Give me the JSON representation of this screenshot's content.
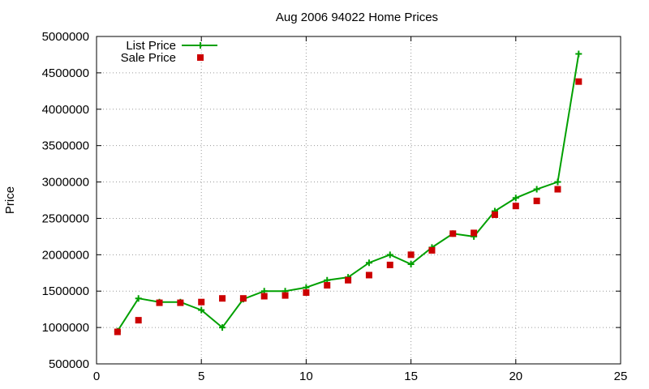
{
  "chart_data": {
    "type": "line",
    "title": "Aug 2006 94022 Home Prices",
    "xlabel": "",
    "ylabel": "Price",
    "xlim": [
      0,
      25
    ],
    "ylim": [
      500000,
      5000000
    ],
    "x_ticks": [
      0,
      5,
      10,
      15,
      20,
      25
    ],
    "y_ticks": [
      500000,
      1000000,
      1500000,
      2000000,
      2500000,
      3000000,
      3500000,
      4000000,
      4500000,
      5000000
    ],
    "x_tick_labels": [
      "0",
      "5",
      "10",
      "15",
      "20",
      "25"
    ],
    "y_tick_labels": [
      "500000",
      "1000000",
      "1500000",
      "2000000",
      "2500000",
      "3000000",
      "3500000",
      "4000000",
      "4500000",
      "5000000"
    ],
    "grid": true,
    "legend_position": "top-left",
    "series": [
      {
        "name": "List Price",
        "style": "line+cross",
        "color": "#00a000",
        "x": [
          1,
          2,
          3,
          4,
          5,
          6,
          7,
          8,
          9,
          10,
          11,
          12,
          13,
          14,
          15,
          16,
          17,
          18,
          19,
          20,
          21,
          22,
          23
        ],
        "y": [
          950000,
          1400000,
          1350000,
          1350000,
          1240000,
          1000000,
          1390000,
          1500000,
          1500000,
          1550000,
          1650000,
          1690000,
          1890000,
          2000000,
          1870000,
          2100000,
          2290000,
          2250000,
          2600000,
          2780000,
          2900000,
          3000000,
          4760000
        ]
      },
      {
        "name": "Sale Price",
        "style": "square",
        "color": "#cc0000",
        "x": [
          1,
          2,
          3,
          4,
          5,
          6,
          7,
          8,
          9,
          10,
          11,
          12,
          13,
          14,
          15,
          16,
          17,
          18,
          19,
          20,
          21,
          22,
          23
        ],
        "y": [
          940000,
          1100000,
          1340000,
          1340000,
          1350000,
          1400000,
          1400000,
          1430000,
          1440000,
          1480000,
          1580000,
          1650000,
          1720000,
          1860000,
          2000000,
          2060000,
          2290000,
          2300000,
          2550000,
          2670000,
          2740000,
          2900000,
          4380000
        ]
      }
    ]
  }
}
